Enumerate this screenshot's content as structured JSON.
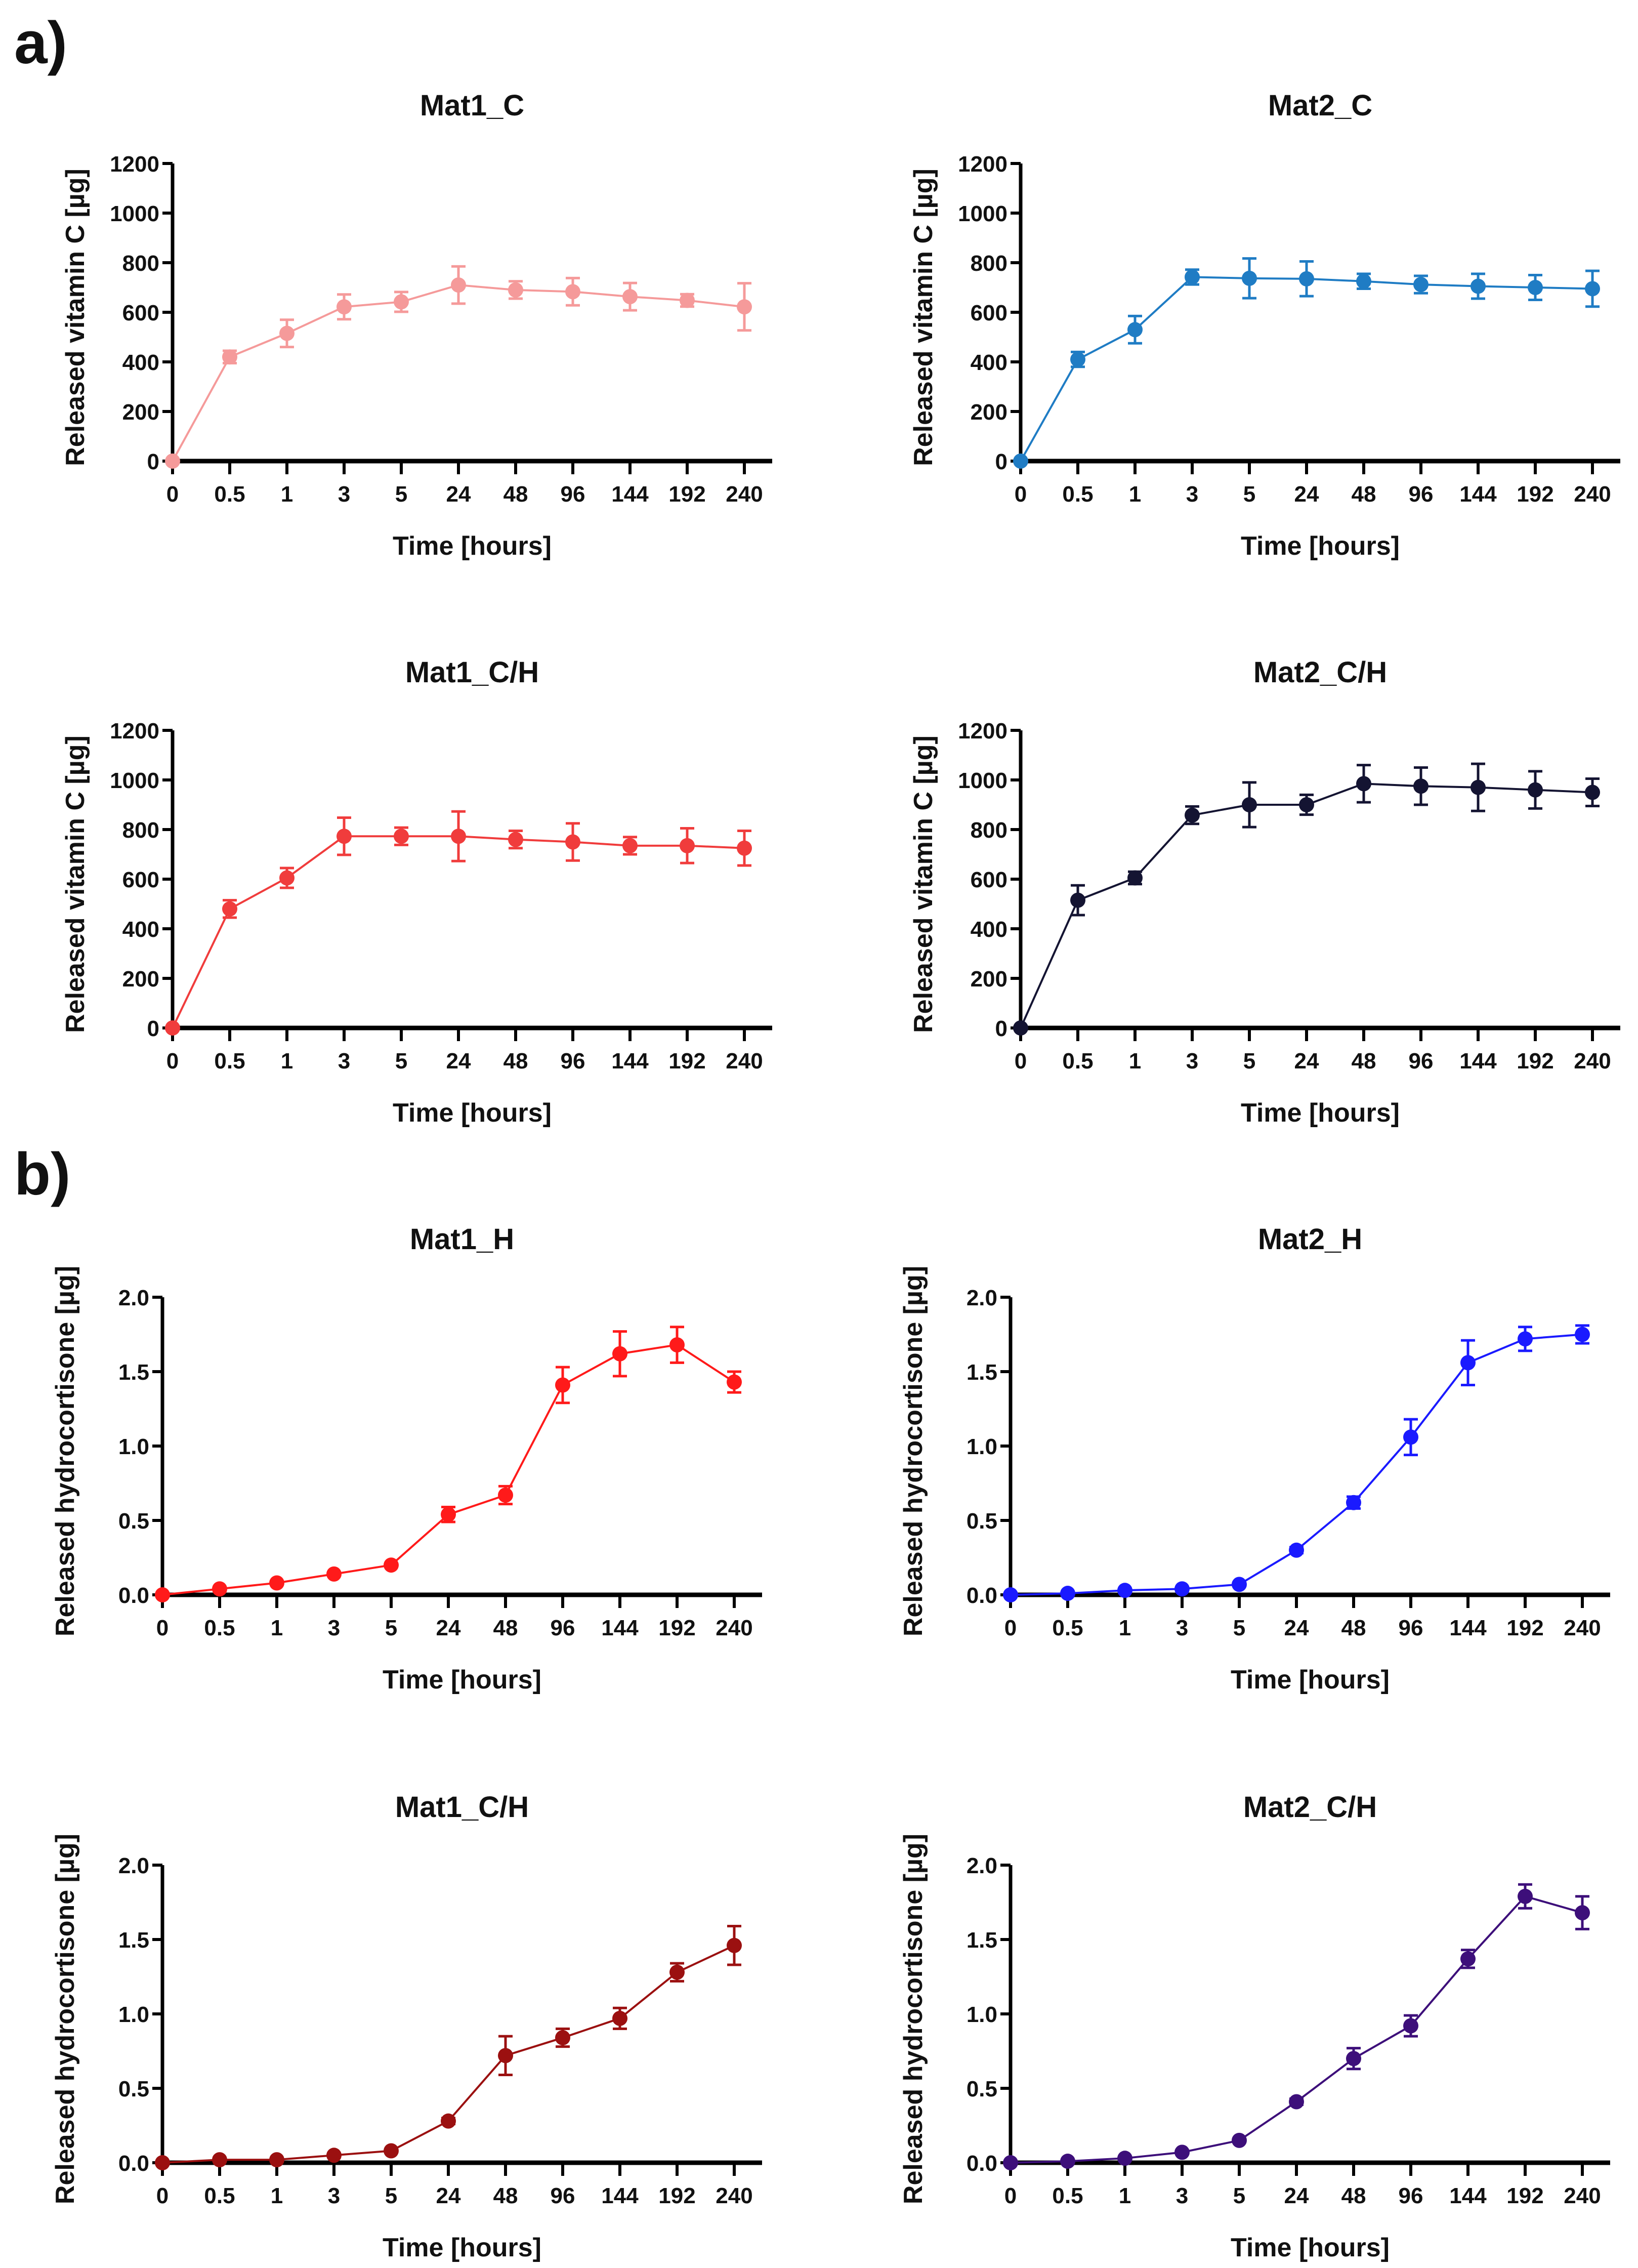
{
  "section_labels": [
    "a)",
    "b)"
  ],
  "chart_data": [
    {
      "type": "line",
      "section": "a)",
      "title": "Mat1_C",
      "xlabel": "Time [hours]",
      "ylabel": "Released vitamin C [µg]",
      "categories": [
        "0",
        "0.5",
        "1",
        "3",
        "5",
        "24",
        "48",
        "96",
        "144",
        "192",
        "240"
      ],
      "ylim": [
        0,
        1200
      ],
      "yticks": [
        0,
        200,
        400,
        600,
        800,
        1000,
        1200
      ],
      "color": "#f59a9a",
      "values": [
        0,
        420,
        515,
        622,
        642,
        710,
        690,
        683,
        663,
        648,
        622
      ],
      "errors": [
        0,
        25,
        55,
        50,
        40,
        75,
        35,
        55,
        55,
        25,
        95
      ]
    },
    {
      "type": "line",
      "section": "a)",
      "title": "Mat2_C",
      "xlabel": "Time [hours]",
      "ylabel": "Released vitamin C [µg]",
      "categories": [
        "0",
        "0.5",
        "1",
        "3",
        "5",
        "24",
        "48",
        "96",
        "144",
        "192",
        "240"
      ],
      "ylim": [
        0,
        1200
      ],
      "yticks": [
        0,
        200,
        400,
        600,
        800,
        1000,
        1200
      ],
      "color": "#1f7cc4",
      "values": [
        0,
        410,
        530,
        742,
        737,
        735,
        725,
        712,
        705,
        700,
        695
      ],
      "errors": [
        0,
        30,
        55,
        30,
        80,
        70,
        30,
        35,
        50,
        50,
        72
      ]
    },
    {
      "type": "line",
      "section": "a)",
      "title": "Mat1_C/H",
      "xlabel": "Time [hours]",
      "ylabel": "Released vitamin C [µg]",
      "categories": [
        "0",
        "0.5",
        "1",
        "3",
        "5",
        "24",
        "48",
        "96",
        "144",
        "192",
        "240"
      ],
      "ylim": [
        0,
        1200
      ],
      "yticks": [
        0,
        200,
        400,
        600,
        800,
        1000,
        1200
      ],
      "color": "#f03c3c",
      "values": [
        0,
        480,
        605,
        773,
        773,
        773,
        760,
        750,
        735,
        735,
        725
      ],
      "errors": [
        0,
        35,
        40,
        75,
        35,
        100,
        35,
        75,
        35,
        70,
        70
      ]
    },
    {
      "type": "line",
      "section": "a)",
      "title": "Mat2_C/H",
      "xlabel": "Time [hours]",
      "ylabel": "Released vitamin C [µg]",
      "categories": [
        "0",
        "0.5",
        "1",
        "3",
        "5",
        "24",
        "48",
        "96",
        "144",
        "192",
        "240"
      ],
      "ylim": [
        0,
        1200
      ],
      "yticks": [
        0,
        200,
        400,
        600,
        800,
        1000,
        1200
      ],
      "color": "#141432",
      "values": [
        0,
        515,
        605,
        858,
        900,
        900,
        985,
        975,
        970,
        960,
        950
      ],
      "errors": [
        0,
        60,
        25,
        35,
        90,
        40,
        75,
        75,
        95,
        75,
        55
      ]
    },
    {
      "type": "line",
      "section": "b)",
      "title": "Mat1_H",
      "xlabel": "Time [hours]",
      "ylabel": "Released hydrocortisone [µg]",
      "categories": [
        "0",
        "0.5",
        "1",
        "3",
        "5",
        "24",
        "48",
        "96",
        "144",
        "192",
        "240"
      ],
      "ylim": [
        0,
        2.0
      ],
      "yticks": [
        "0.0",
        "0.5",
        "1.0",
        "1.5",
        "2.0"
      ],
      "color": "#ff1a1a",
      "values": [
        0,
        0.04,
        0.08,
        0.14,
        0.2,
        0.54,
        0.67,
        1.41,
        1.62,
        1.68,
        1.43
      ],
      "errors": [
        0,
        0.01,
        0.01,
        0.01,
        0.01,
        0.05,
        0.06,
        0.12,
        0.15,
        0.12,
        0.07
      ]
    },
    {
      "type": "line",
      "section": "b)",
      "title": "Mat2_H",
      "xlabel": "Time [hours]",
      "ylabel": "Released hydrocortisone [µg]",
      "categories": [
        "0",
        "0.5",
        "1",
        "3",
        "5",
        "24",
        "48",
        "96",
        "144",
        "192",
        "240"
      ],
      "ylim": [
        0,
        2.0
      ],
      "yticks": [
        "0.0",
        "0.5",
        "1.0",
        "1.5",
        "2.0"
      ],
      "color": "#1a1aff",
      "values": [
        0,
        0.01,
        0.03,
        0.04,
        0.07,
        0.3,
        0.62,
        1.06,
        1.56,
        1.72,
        1.75
      ],
      "errors": [
        0,
        0.01,
        0.01,
        0.01,
        0.01,
        0.02,
        0.04,
        0.12,
        0.15,
        0.08,
        0.06
      ]
    },
    {
      "type": "line",
      "section": "b)",
      "title": "Mat1_C/H",
      "xlabel": "Time [hours]",
      "ylabel": "Released hydrocortisone [µg]",
      "categories": [
        "0",
        "0.5",
        "1",
        "3",
        "5",
        "24",
        "48",
        "96",
        "144",
        "192",
        "240"
      ],
      "ylim": [
        0,
        2.0
      ],
      "yticks": [
        "0.0",
        "0.5",
        "1.0",
        "1.5",
        "2.0"
      ],
      "color": "#9b1010",
      "values": [
        0,
        0.02,
        0.02,
        0.05,
        0.08,
        0.28,
        0.72,
        0.84,
        0.97,
        1.28,
        1.46
      ],
      "errors": [
        0,
        0.01,
        0.01,
        0.01,
        0.01,
        0.02,
        0.13,
        0.06,
        0.07,
        0.06,
        0.13
      ]
    },
    {
      "type": "line",
      "section": "b)",
      "title": "Mat2_C/H",
      "xlabel": "Time [hours]",
      "ylabel": "Released hydrocortisone [µg]",
      "categories": [
        "0",
        "0.5",
        "1",
        "3",
        "5",
        "24",
        "48",
        "96",
        "144",
        "192",
        "240"
      ],
      "ylim": [
        0,
        2.0
      ],
      "yticks": [
        "0.0",
        "0.5",
        "1.0",
        "1.5",
        "2.0"
      ],
      "color": "#3d0f7a",
      "values": [
        0,
        0.01,
        0.03,
        0.07,
        0.15,
        0.41,
        0.7,
        0.92,
        1.37,
        1.79,
        1.68
      ],
      "errors": [
        0,
        0.01,
        0.01,
        0.01,
        0.01,
        0.02,
        0.07,
        0.07,
        0.06,
        0.08,
        0.11
      ]
    }
  ]
}
